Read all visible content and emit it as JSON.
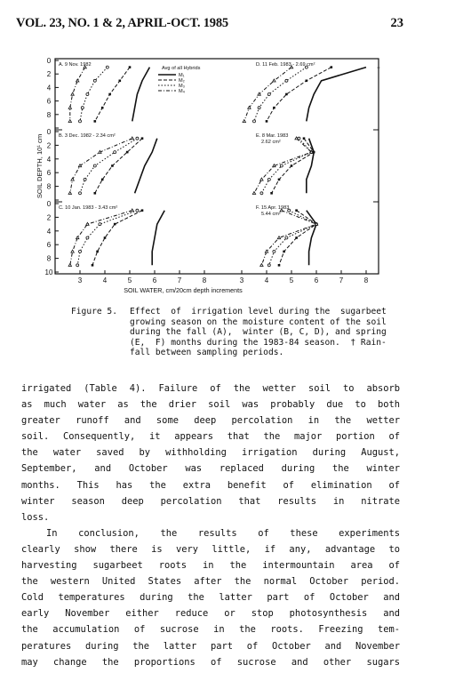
{
  "header": {
    "journal": "VOL. 23, NO. 1 & 2, APRIL-OCT. 1985",
    "page": "23"
  },
  "figure": {
    "ylabel": "SOIL DEPTH, 10¹ cm",
    "xlabel": "SOIL WATER, cm/20cm depth increments",
    "x_ticks": [
      "3",
      "4",
      "5",
      "6",
      "7",
      "8",
      "3",
      "4",
      "5",
      "6",
      "7",
      "8"
    ],
    "y_ticks": [
      "0",
      "2",
      "4",
      "6",
      "8",
      "10"
    ],
    "legend": {
      "title": "Avg of all Hybrids",
      "entries": [
        "M₁",
        "M₂",
        "M₃",
        "M₄"
      ]
    },
    "panels": [
      {
        "label": "A. 9 Nov. 1982"
      },
      {
        "label": "D. 11 Feb. 1983 - 2.69 cm²"
      },
      {
        "label": "B. 3 Dec. 1982 - 2.34 cm²"
      },
      {
        "label": "E. 8 Mar. 1983",
        "label2": "2.62 cm²"
      },
      {
        "label": "C. 10 Jan. 1983 - 3.43 cm²"
      },
      {
        "label": "F. 15 Apr. 1983",
        "label2": "5.44 cm²"
      }
    ]
  },
  "chart_data": [
    {
      "type": "line",
      "title": "A. 9 Nov. 1982",
      "xlabel": "SOIL WATER, cm/20cm depth increments",
      "ylabel": "SOIL DEPTH, 10¹ cm",
      "xlim": [
        2,
        8.5
      ],
      "ylim": [
        10,
        0
      ],
      "series": [
        {
          "name": "M₁",
          "x": [
            5.8,
            5.5,
            5.3,
            5.2,
            5.1
          ],
          "y": [
            1,
            3,
            5,
            7,
            9
          ]
        },
        {
          "name": "M₂",
          "x": [
            5.0,
            4.6,
            4.2,
            3.9,
            3.6
          ],
          "y": [
            1,
            3,
            5,
            7,
            9
          ]
        },
        {
          "name": "M₃",
          "x": [
            4.1,
            3.6,
            3.3,
            3.1,
            3.0
          ],
          "y": [
            1,
            3,
            5,
            7,
            9
          ]
        },
        {
          "name": "M₄",
          "x": [
            3.2,
            2.9,
            2.7,
            2.6,
            2.6
          ],
          "y": [
            1,
            3,
            5,
            7,
            9
          ]
        }
      ]
    },
    {
      "type": "line",
      "title": "D. 11 Feb. 1983 - 2.69 cm²",
      "xlim": [
        2,
        8.5
      ],
      "ylim": [
        10,
        0
      ],
      "series": [
        {
          "name": "M₁",
          "x": [
            8.0,
            6.2,
            5.9,
            5.7,
            5.6
          ],
          "y": [
            1,
            3,
            5,
            7,
            9
          ]
        },
        {
          "name": "M₂",
          "x": [
            6.6,
            5.6,
            4.8,
            4.3,
            4.0
          ],
          "y": [
            1,
            3,
            5,
            7,
            9
          ]
        },
        {
          "name": "M₃",
          "x": [
            5.6,
            4.8,
            4.1,
            3.7,
            3.5
          ],
          "y": [
            1,
            3,
            5,
            7,
            9
          ]
        },
        {
          "name": "M₄",
          "x": [
            5.0,
            4.3,
            3.7,
            3.3,
            3.1
          ],
          "y": [
            1,
            3,
            5,
            7,
            9
          ]
        }
      ]
    },
    {
      "type": "line",
      "title": "B. 3 Dec. 1982 - 2.34 cm²",
      "xlim": [
        2,
        8.5
      ],
      "ylim": [
        10,
        0
      ],
      "series": [
        {
          "name": "M₁",
          "x": [
            6.1,
            5.9,
            5.6,
            5.4,
            5.2
          ],
          "y": [
            1,
            3,
            5,
            7,
            9
          ]
        },
        {
          "name": "M₂",
          "x": [
            5.5,
            4.9,
            4.3,
            3.9,
            3.6
          ],
          "y": [
            1,
            3,
            5,
            7,
            9
          ]
        },
        {
          "name": "M₃",
          "x": [
            5.3,
            4.4,
            3.6,
            3.2,
            3.0
          ],
          "y": [
            1,
            3,
            5,
            7,
            9
          ]
        },
        {
          "name": "M₄",
          "x": [
            5.1,
            3.8,
            3.0,
            2.7,
            2.6
          ],
          "y": [
            1,
            3,
            5,
            7,
            9
          ]
        }
      ]
    },
    {
      "type": "line",
      "title": "E. 8 Mar. 1983 - 2.62 cm²",
      "xlim": [
        2,
        8.5
      ],
      "ylim": [
        10,
        0
      ],
      "series": [
        {
          "name": "M₁",
          "x": [
            5.7,
            5.9,
            5.8,
            5.6,
            5.6
          ],
          "y": [
            1,
            3,
            5,
            7,
            9
          ]
        },
        {
          "name": "M₂",
          "x": [
            5.5,
            5.9,
            5.0,
            4.5,
            4.2
          ],
          "y": [
            1,
            3,
            5,
            7,
            9
          ]
        },
        {
          "name": "M₃",
          "x": [
            5.3,
            5.8,
            4.6,
            4.1,
            3.8
          ],
          "y": [
            1,
            3,
            5,
            7,
            9
          ]
        },
        {
          "name": "M₄",
          "x": [
            5.2,
            5.8,
            4.3,
            3.8,
            3.5
          ],
          "y": [
            1,
            3,
            5,
            7,
            9
          ]
        }
      ]
    },
    {
      "type": "line",
      "title": "C. 10 Jan. 1983 - 3.43 cm²",
      "xlim": [
        2,
        8.5
      ],
      "ylim": [
        10,
        0
      ],
      "series": [
        {
          "name": "M₁",
          "x": [
            6.4,
            6.1,
            6.0,
            5.9,
            5.9
          ],
          "y": [
            1,
            3,
            5,
            7,
            9
          ]
        },
        {
          "name": "M₂",
          "x": [
            5.5,
            4.4,
            4.0,
            3.7,
            3.5
          ],
          "y": [
            1,
            3,
            5,
            7,
            9
          ]
        },
        {
          "name": "M₃",
          "x": [
            5.3,
            3.8,
            3.3,
            3.0,
            2.9
          ],
          "y": [
            1,
            3,
            5,
            7,
            9
          ]
        },
        {
          "name": "M₄",
          "x": [
            5.1,
            3.3,
            2.9,
            2.7,
            2.6
          ],
          "y": [
            1,
            3,
            5,
            7,
            9
          ]
        }
      ]
    },
    {
      "type": "line",
      "title": "F. 15 Apr. 1983 - 5.44 cm²",
      "xlim": [
        2,
        8.5
      ],
      "ylim": [
        10,
        0
      ],
      "series": [
        {
          "name": "M₁",
          "x": [
            5.6,
            6.0,
            5.8,
            5.7,
            5.7
          ],
          "y": [
            1,
            3,
            5,
            7,
            9
          ]
        },
        {
          "name": "M₂",
          "x": [
            5.2,
            6.0,
            5.2,
            4.7,
            4.5
          ],
          "y": [
            1,
            3,
            5,
            7,
            9
          ]
        },
        {
          "name": "M₃",
          "x": [
            4.9,
            6.0,
            4.8,
            4.3,
            4.1
          ],
          "y": [
            1,
            3,
            5,
            7,
            9
          ]
        },
        {
          "name": "M₄",
          "x": [
            4.6,
            6.0,
            4.5,
            4.0,
            3.8
          ],
          "y": [
            1,
            3,
            5,
            7,
            9
          ]
        }
      ]
    }
  ],
  "caption": {
    "label": "Figure 5.",
    "lines": [
      "Effect  of  irrigation level during the  sugarbeet",
      "growing season on the moisture content of the soil",
      "during the fall (A),  winter (B, C, D), and spring",
      "(E,  F) months during the 1983-84 season.  † Rain-",
      "fall between sampling periods."
    ]
  },
  "body": {
    "lines": [
      "irrigated (Table 4).  Failure of the wetter soil to absorb",
      "as  much water as the drier soil was probably due to  both",
      "greater  runoff  and some deep percolation in  the  wetter",
      "soil.   Consequently, it appears that the major portion of",
      "the  water saved by withholding irrigation during  August,",
      "September,  and  October  was replaced during  the  winter",
      "months.   This  has  the extra benefit of  elimination  of",
      "winter  season  deep percolation that results  in  nitrate",
      "loss.",
      "In  conclusion,  the  results  of  these  experiments",
      "clearly show there is very little,  if any,  advantage  to",
      "harvesting  sugarbeet  roots in the intermountain area  of",
      "the western United States after the normal October period.",
      "Cold  temperatures during the latter part of  October  and",
      "early  November  either reduce or stop photosynthesis  and",
      "the accumulation of sucrose in the roots.   Freezing  tem-",
      "peratures  during the latter part of October and  November",
      "may  change the proportions of sucrose and other  sugars"
    ]
  }
}
